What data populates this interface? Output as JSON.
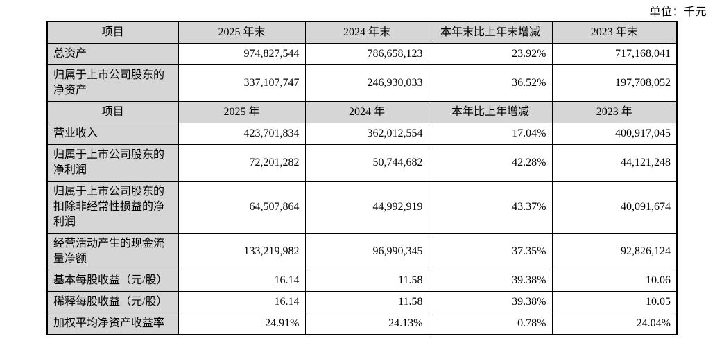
{
  "page": {
    "unit_label": "单位：千元"
  },
  "table": {
    "colors": {
      "header_bg": "#d6d6d6",
      "label_bg": "#d6d6d6",
      "border": "#000000",
      "data_bg": "#ffffff"
    },
    "rows": [
      {
        "type": "header",
        "cells": [
          "项目",
          "2025 年末",
          "2024 年末",
          "本年末比上年末增减",
          "2023 年末"
        ]
      },
      {
        "type": "data",
        "label": "总资产",
        "values": [
          "974,827,544",
          "786,658,123",
          "23.92%",
          "717,168,041"
        ]
      },
      {
        "type": "data",
        "label": "归属于上市公司股东的净资产",
        "values": [
          "337,107,747",
          "246,930,033",
          "36.52%",
          "197,708,052"
        ]
      },
      {
        "type": "header",
        "cells": [
          "项目",
          "2025 年",
          "2024 年",
          "本年比上年增减",
          "2023 年"
        ]
      },
      {
        "type": "data",
        "label": "营业收入",
        "values": [
          "423,701,834",
          "362,012,554",
          "17.04%",
          "400,917,045"
        ]
      },
      {
        "type": "data",
        "label": "归属于上市公司股东的净利润",
        "values": [
          "72,201,282",
          "50,744,682",
          "42.28%",
          "44,121,248"
        ]
      },
      {
        "type": "data",
        "label": "归属于上市公司股东的扣除非经常性损益的净利润",
        "values": [
          "64,507,864",
          "44,992,919",
          "43.37%",
          "40,091,674"
        ]
      },
      {
        "type": "data",
        "label": "经营活动产生的现金流量净额",
        "values": [
          "133,219,982",
          "96,990,345",
          "37.35%",
          "92,826,124"
        ]
      },
      {
        "type": "data",
        "label": "基本每股收益（元/股）",
        "values": [
          "16.14",
          "11.58",
          "39.38%",
          "10.06"
        ]
      },
      {
        "type": "data",
        "label": "稀释每股收益（元/股）",
        "values": [
          "16.14",
          "11.58",
          "39.38%",
          "10.05"
        ]
      },
      {
        "type": "data",
        "label": "加权平均净资产收益率",
        "values": [
          "24.91%",
          "24.13%",
          "0.78%",
          "24.04%"
        ]
      }
    ]
  }
}
